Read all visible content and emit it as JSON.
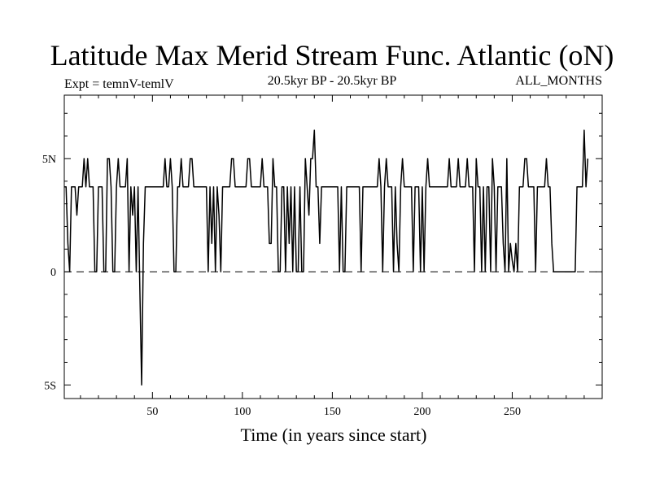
{
  "chart_data": {
    "type": "line",
    "title": "Latitude Max Merid Stream Func. Atlantic (oN)",
    "subtitle_left": "Expt = temnV-temlV",
    "subtitle_center": "20.5kyr BP - 20.5kyr BP",
    "subtitle_right": "ALL_MONTHS",
    "xlabel": "Time (in years since start)",
    "ylabel": "",
    "xlim": [
      1,
      300
    ],
    "ylim": [
      -5.6,
      7.8
    ],
    "x_ticks": [
      50,
      100,
      150,
      200,
      250
    ],
    "x_tick_labels": [
      "50",
      "100",
      "150",
      "200",
      "250"
    ],
    "y_ticks": [
      -5,
      0,
      5
    ],
    "y_tick_labels": [
      "5S",
      "0",
      "5N"
    ],
    "zero_line": "dashed",
    "grid": false,
    "series": [
      {
        "values": [
          3.75,
          3.75,
          1.25,
          0,
          3.75,
          3.75,
          3.75,
          2.5,
          3.75,
          3.75,
          3.75,
          5,
          3.75,
          5,
          3.75,
          3.75,
          3.75,
          0,
          0,
          3.75,
          3.75,
          3.75,
          0,
          0,
          5,
          5,
          3.75,
          0,
          0,
          3.75,
          5,
          3.75,
          3.75,
          3.75,
          3.75,
          5,
          0,
          3.75,
          2.5,
          3.75,
          0,
          3.75,
          -0.75,
          -5,
          1.25,
          3.75,
          3.75,
          3.75,
          3.75,
          3.75,
          3.75,
          3.75,
          3.75,
          3.75,
          3.75,
          3.75,
          5,
          3.75,
          3.75,
          5,
          3.75,
          0,
          0,
          3.75,
          3.75,
          5,
          3.75,
          3.75,
          3.75,
          3.75,
          5,
          5,
          3.75,
          3.75,
          3.75,
          3.75,
          3.75,
          3.75,
          3.75,
          3.75,
          0,
          3.75,
          1.25,
          3.75,
          0,
          3.75,
          2.5,
          0,
          3.75,
          3.75,
          3.75,
          3.75,
          3.75,
          5,
          5,
          3.75,
          3.75,
          3.75,
          3.75,
          3.75,
          3.75,
          3.75,
          5,
          5,
          3.75,
          3.75,
          3.75,
          3.75,
          3.75,
          3.75,
          5,
          3.75,
          3.75,
          3.75,
          1.25,
          1.25,
          5,
          3.75,
          3.75,
          0,
          0,
          3.75,
          3.75,
          0,
          3.75,
          1.25,
          3.75,
          0,
          3.75,
          0,
          0,
          3.75,
          0,
          0,
          5,
          3.75,
          2.5,
          5,
          5,
          6.25,
          3.75,
          3.75,
          1.25,
          3.75,
          3.75,
          3.75,
          3.75,
          3.75,
          3.75,
          3.75,
          3.75,
          3.75,
          3.75,
          0,
          3.75,
          0,
          0,
          3.75,
          3.75,
          3.75,
          3.75,
          3.75,
          3.75,
          3.75,
          3.75,
          0,
          3.75,
          3.75,
          3.75,
          3.75,
          3.75,
          3.75,
          3.75,
          3.75,
          3.75,
          5,
          3.75,
          0,
          3.75,
          5,
          3.75,
          3.75,
          3.75,
          0,
          3.75,
          1.25,
          0,
          3.75,
          5,
          3.75,
          3.75,
          3.75,
          3.75,
          3.75,
          0,
          3.75,
          3.75,
          3.75,
          0,
          3.75,
          0,
          3.75,
          5,
          3.75,
          3.75,
          3.75,
          3.75,
          3.75,
          3.75,
          3.75,
          3.75,
          3.75,
          3.75,
          3.75,
          5,
          3.75,
          3.75,
          3.75,
          3.75,
          5,
          3.75,
          3.75,
          3.75,
          3.75,
          5,
          3.75,
          3.75,
          3.75,
          0,
          5,
          3.75,
          3.75,
          0,
          3.75,
          0,
          3.75,
          3.75,
          0,
          5,
          3.75,
          0,
          3.75,
          3.75,
          3.75,
          1.25,
          0,
          5,
          0,
          1.25,
          0.5,
          0,
          1.25,
          0,
          3.75,
          3.75,
          3.75,
          5,
          5,
          3.75,
          3.75,
          3.75,
          3.75,
          0,
          3.75,
          3.75,
          3.75,
          3.75,
          3.75,
          5,
          3.75,
          3.75,
          1.25,
          0,
          0,
          0,
          0,
          0,
          0,
          0,
          0,
          0,
          0,
          0,
          0,
          0,
          3.75,
          3.75,
          3.75,
          3.75,
          6.25,
          3.75,
          5
        ]
      }
    ]
  }
}
